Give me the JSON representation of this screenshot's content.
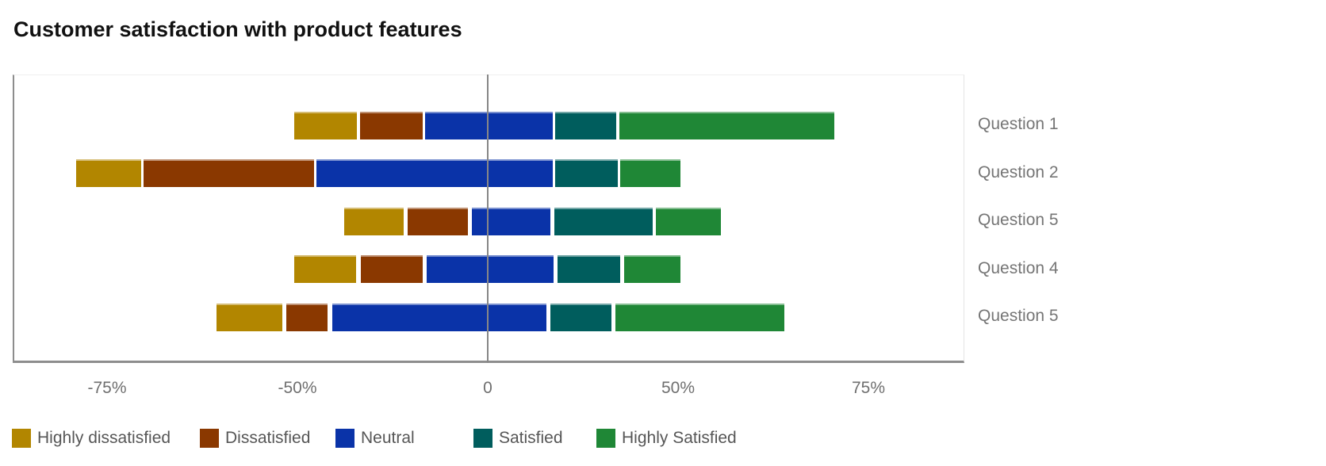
{
  "chart_data": {
    "type": "bar",
    "variant": "diverging_stacked_likert",
    "title": "Customer satisfaction with product features",
    "orientation": "horizontal",
    "categories": [
      "Question 1",
      "Question 2",
      "Question 5",
      "Question 4",
      "Question 5"
    ],
    "legend": [
      {
        "label": "Highly dissatisfied",
        "color": "#b28600"
      },
      {
        "label": "Dissatisfied",
        "color": "#8a3800"
      },
      {
        "label": "Neutral",
        "color": "#0a33a8"
      },
      {
        "label": "Satisfied",
        "color": "#005d5d"
      },
      {
        "label": "Highly Satisfied",
        "color": "#1f8736"
      }
    ],
    "x_axis": {
      "tick_labels": [
        "-75%",
        "-50%",
        "0",
        "50%",
        "75%"
      ],
      "tick_values": [
        -75,
        -50,
        0,
        50,
        75
      ],
      "evenly_spaced_ticks": true,
      "zero_line": true
    },
    "grid": false,
    "category_labels_position": "right",
    "legend_position": "bottom-left",
    "value_note": "start/end are percent positions along the axis, estimated from pixels with the central -50..50 tick span treated as linear; Neutral straddles zero",
    "rows": [
      {
        "label": "Question 1",
        "segments": [
          {
            "level": "Highly dissatisfied",
            "start": -50.8,
            "end": -34.4
          },
          {
            "level": "Dissatisfied",
            "start": -33.5,
            "end": -17.1
          },
          {
            "level": "Neutral",
            "start": -16.5,
            "end": 17.1
          },
          {
            "level": "Satisfied",
            "start": 17.7,
            "end": 33.8
          },
          {
            "level": "Highly Satisfied",
            "start": 34.6,
            "end": 91.0
          }
        ]
      },
      {
        "label": "Question 2",
        "segments": [
          {
            "level": "Highly dissatisfied",
            "start": -108.1,
            "end": -91.0
          },
          {
            "level": "Dissatisfied",
            "start": -90.4,
            "end": -45.6
          },
          {
            "level": "Neutral",
            "start": -45.0,
            "end": 17.1
          },
          {
            "level": "Satisfied",
            "start": 17.7,
            "end": 34.2
          },
          {
            "level": "Highly Satisfied",
            "start": 34.8,
            "end": 50.6
          }
        ]
      },
      {
        "label": "Question 5",
        "segments": [
          {
            "level": "Highly dissatisfied",
            "start": -37.7,
            "end": -22.1
          },
          {
            "level": "Dissatisfied",
            "start": -21.0,
            "end": -5.2
          },
          {
            "level": "Neutral",
            "start": -4.2,
            "end": 16.5
          },
          {
            "level": "Satisfied",
            "start": 17.5,
            "end": 43.3
          },
          {
            "level": "Highly Satisfied",
            "start": 44.2,
            "end": 61.3
          }
        ]
      },
      {
        "label": "Question 4",
        "segments": [
          {
            "level": "Highly dissatisfied",
            "start": -50.8,
            "end": -34.6
          },
          {
            "level": "Dissatisfied",
            "start": -33.3,
            "end": -17.1
          },
          {
            "level": "Neutral",
            "start": -16.0,
            "end": 17.3
          },
          {
            "level": "Satisfied",
            "start": 18.3,
            "end": 34.8
          },
          {
            "level": "Highly Satisfied",
            "start": 35.8,
            "end": 50.6
          }
        ]
      },
      {
        "label": "Question 5",
        "segments": [
          {
            "level": "Highly dissatisfied",
            "start": -71.3,
            "end": -54.0
          },
          {
            "level": "Dissatisfied",
            "start": -52.9,
            "end": -42.1
          },
          {
            "level": "Neutral",
            "start": -40.8,
            "end": 15.4
          },
          {
            "level": "Satisfied",
            "start": 16.5,
            "end": 32.5
          },
          {
            "level": "Highly Satisfied",
            "start": 33.5,
            "end": 77.9
          }
        ]
      }
    ],
    "colors": {
      "axis_line": "#8d8d8d",
      "zero_line": "#878787",
      "tick_text": "#6f6f6f",
      "category_text": "#757575",
      "legend_text": "#565656",
      "title_text": "#111111",
      "background": "#ffffff"
    }
  }
}
